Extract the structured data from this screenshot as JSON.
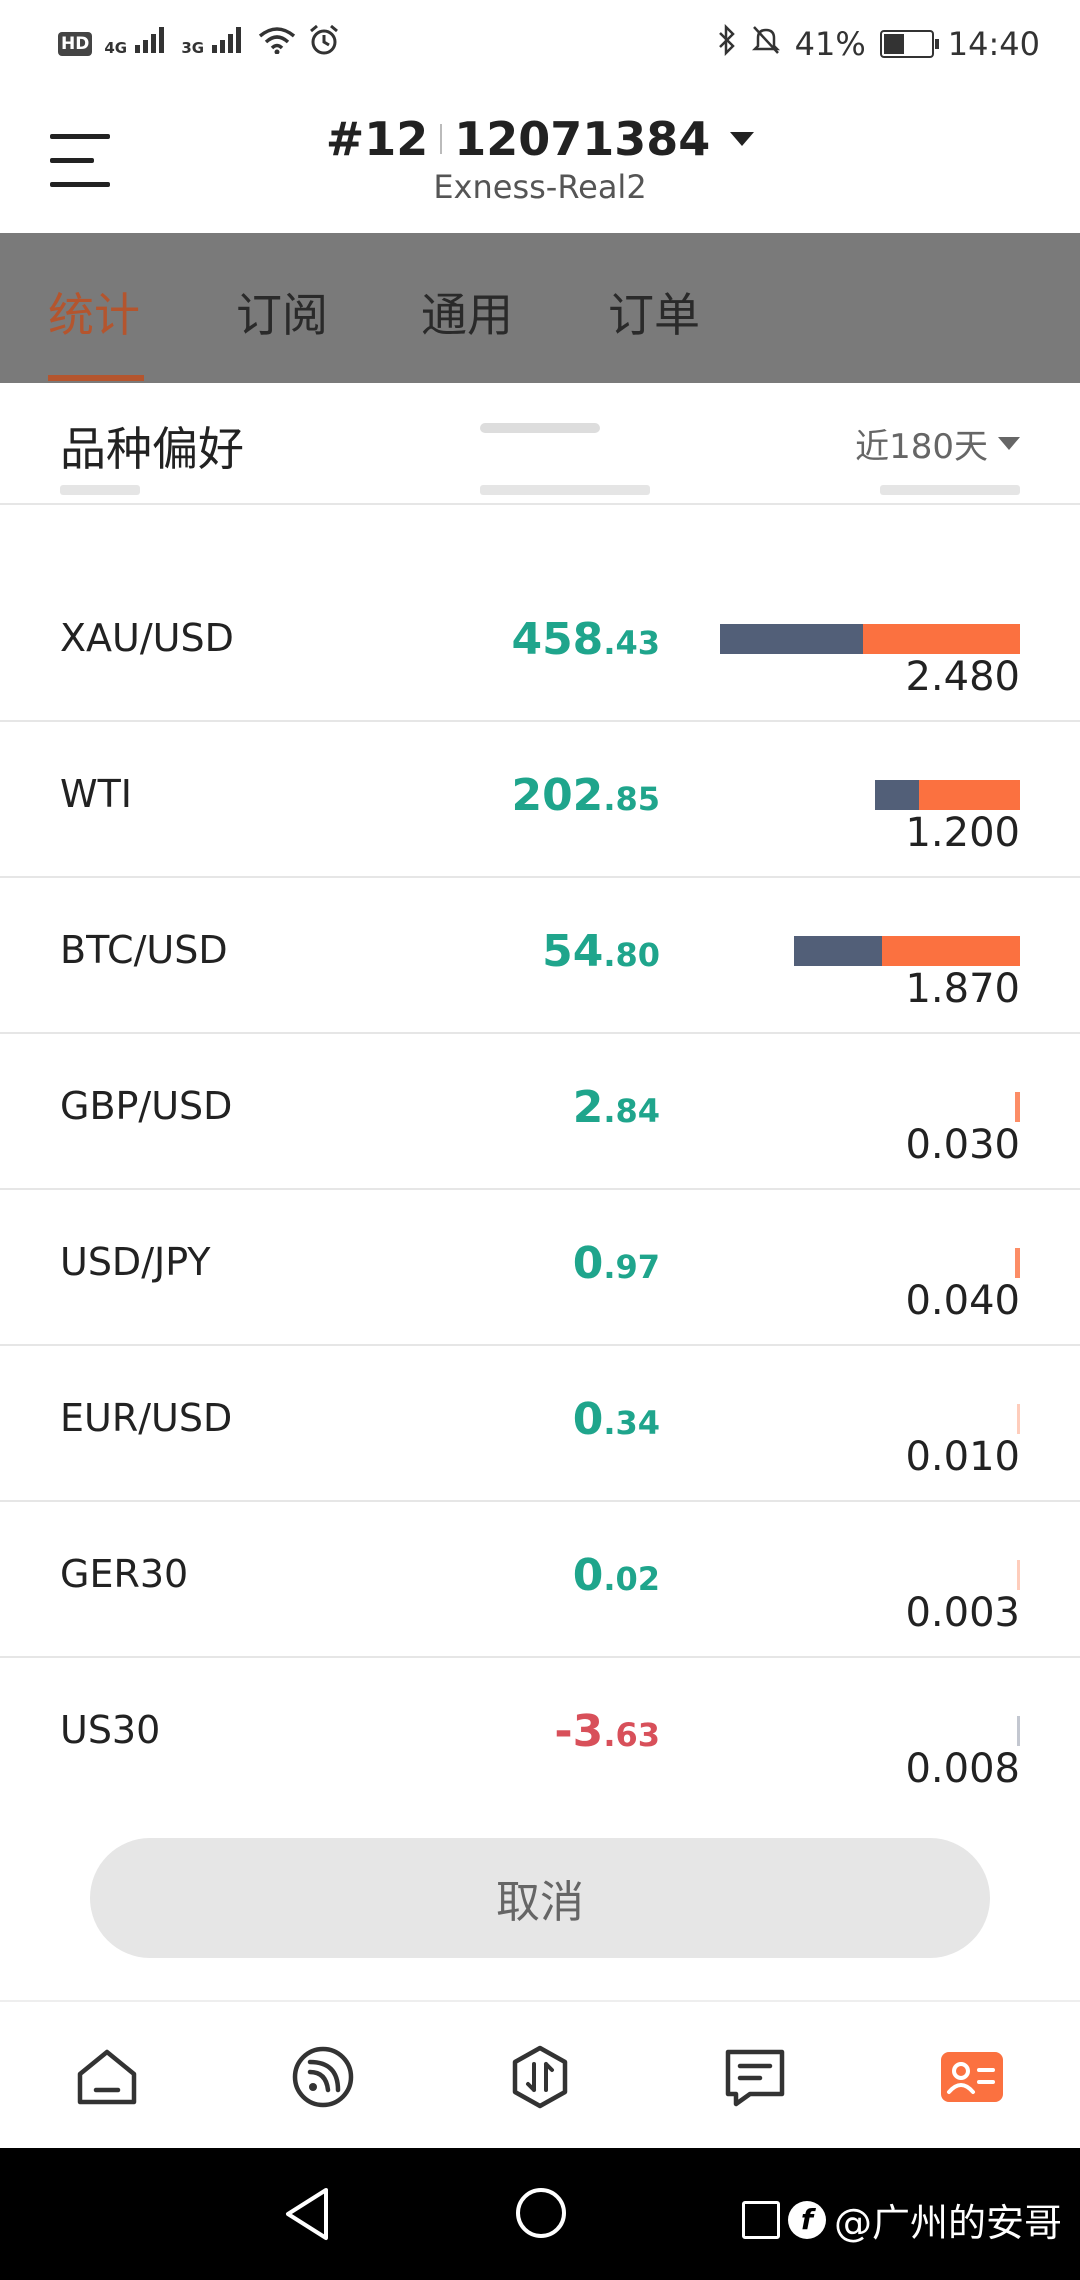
{
  "status_bar": {
    "left": {
      "hd": "HD",
      "sig1": "4G",
      "sig2": "3G"
    },
    "battery_pct": "41%",
    "time": "14:40"
  },
  "header": {
    "account_prefix": "#12",
    "account_number": "12071384",
    "server": "Exness-Real2"
  },
  "tabs": [
    {
      "label": "统计",
      "active": true
    },
    {
      "label": "订阅",
      "active": false
    },
    {
      "label": "通用",
      "active": false
    },
    {
      "label": "订单",
      "active": false
    }
  ],
  "sheet": {
    "title": "品种偏好",
    "period": "近180天",
    "rows": [
      {
        "symbol": "XAU/USD",
        "pnl_int": "458",
        "pnl_dec": ".43",
        "sign": "pos",
        "volume": "2.480",
        "bar_blue": 0.475,
        "bar_orange": 0.525,
        "bar_total": 1.0
      },
      {
        "symbol": "WTI",
        "pnl_int": "202",
        "pnl_dec": ".85",
        "sign": "pos",
        "volume": "1.200",
        "bar_blue": 0.3,
        "bar_orange": 0.7,
        "bar_total": 0.484
      },
      {
        "symbol": "BTC/USD",
        "pnl_int": "54",
        "pnl_dec": ".80",
        "sign": "pos",
        "volume": "1.870",
        "bar_blue": 0.39,
        "bar_orange": 0.61,
        "bar_total": 0.754
      },
      {
        "symbol": "GBP/USD",
        "pnl_int": "2",
        "pnl_dec": ".84",
        "sign": "pos",
        "volume": "0.030",
        "bar_blue": 0,
        "bar_orange": 1,
        "bar_total": 0.015
      },
      {
        "symbol": "USD/JPY",
        "pnl_int": "0",
        "pnl_dec": ".97",
        "sign": "pos",
        "volume": "0.040",
        "bar_blue": 0,
        "bar_orange": 1,
        "bar_total": 0.018
      },
      {
        "symbol": "EUR/USD",
        "pnl_int": "0",
        "pnl_dec": ".34",
        "sign": "pos",
        "volume": "0.010",
        "bar_blue": 0,
        "bar_orange": 1,
        "bar_total": 0.008
      },
      {
        "symbol": "GER30",
        "pnl_int": "0",
        "pnl_dec": ".02",
        "sign": "pos",
        "volume": "0.003",
        "bar_blue": 0,
        "bar_orange": 1,
        "bar_total": 0.004
      },
      {
        "symbol": "US30",
        "pnl_int": "-3",
        "pnl_dec": ".63",
        "sign": "neg",
        "volume": "0.008",
        "bar_blue": 1,
        "bar_orange": 0,
        "bar_total": 0.004
      }
    ],
    "cancel_label": "取消"
  },
  "bottom_nav": [
    {
      "icon": "home-icon",
      "active": false
    },
    {
      "icon": "signal-icon",
      "active": false
    },
    {
      "icon": "trade-icon",
      "active": false
    },
    {
      "icon": "message-icon",
      "active": false
    },
    {
      "icon": "profile-card-icon",
      "active": true
    }
  ],
  "colors": {
    "accent": "#fb7140",
    "profit": "#1fa58c",
    "loss": "#d8505a",
    "bar_blue": "#525f78",
    "bar_orange": "#fb7140"
  },
  "watermark": "@广州的安哥"
}
